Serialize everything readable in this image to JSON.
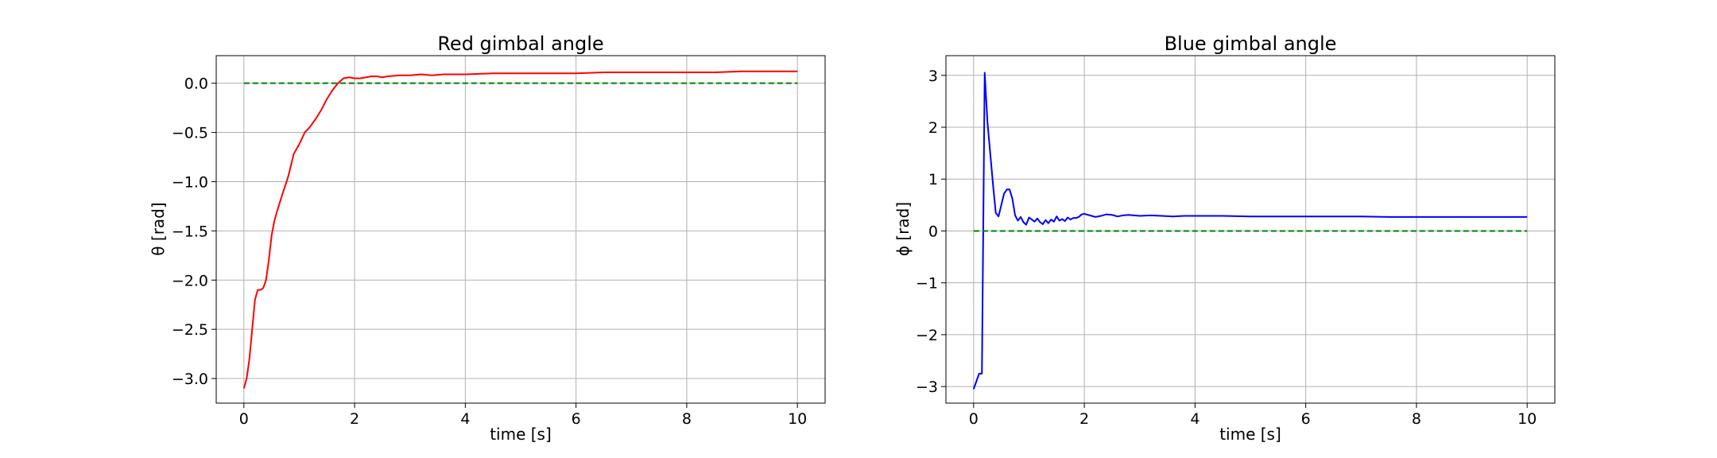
{
  "chart_data": [
    {
      "type": "line",
      "title": "Red gimbal angle",
      "xlabel": "time [s]",
      "ylabel": "θ [rad]",
      "xlim": [
        -0.5,
        10.5
      ],
      "ylim": [
        -3.25,
        0.28
      ],
      "xticks": [
        0,
        2,
        4,
        6,
        8,
        10
      ],
      "yticks": [
        -3.0,
        -2.5,
        -2.0,
        -1.5,
        -1.0,
        -0.5,
        0.0
      ],
      "ytick_labels": [
        "−3.0",
        "−2.5",
        "−2.0",
        "−1.5",
        "−1.0",
        "−0.5",
        "0.0"
      ],
      "grid": true,
      "series": [
        {
          "color": "#ff0000",
          "style": "solid",
          "x": [
            0,
            0.05,
            0.1,
            0.15,
            0.2,
            0.25,
            0.3,
            0.35,
            0.4,
            0.45,
            0.5,
            0.55,
            0.6,
            0.7,
            0.8,
            0.9,
            1.0,
            1.1,
            1.2,
            1.3,
            1.4,
            1.5,
            1.6,
            1.7,
            1.8,
            1.9,
            2.0,
            2.1,
            2.2,
            2.3,
            2.4,
            2.5,
            2.6,
            2.8,
            3.0,
            3.2,
            3.4,
            3.6,
            3.8,
            4.0,
            4.5,
            5.0,
            5.5,
            6.0,
            6.5,
            7.0,
            7.5,
            8.0,
            8.5,
            9.0,
            9.5,
            10.0
          ],
          "y": [
            -3.1,
            -3.0,
            -2.8,
            -2.5,
            -2.2,
            -2.1,
            -2.1,
            -2.08,
            -2.0,
            -1.8,
            -1.55,
            -1.4,
            -1.3,
            -1.12,
            -0.95,
            -0.72,
            -0.62,
            -0.5,
            -0.44,
            -0.36,
            -0.27,
            -0.16,
            -0.07,
            0.0,
            0.05,
            0.06,
            0.05,
            0.05,
            0.06,
            0.07,
            0.07,
            0.06,
            0.07,
            0.08,
            0.08,
            0.09,
            0.08,
            0.09,
            0.09,
            0.09,
            0.1,
            0.1,
            0.1,
            0.1,
            0.11,
            0.11,
            0.11,
            0.11,
            0.11,
            0.12,
            0.12,
            0.12
          ]
        },
        {
          "color": "#008000",
          "style": "dashed",
          "x": [
            0,
            10
          ],
          "y": [
            0,
            0
          ]
        }
      ]
    },
    {
      "type": "line",
      "title": "Blue gimbal angle",
      "xlabel": "time [s]",
      "ylabel": "ϕ [rad]",
      "xlim": [
        -0.5,
        10.5
      ],
      "ylim": [
        -3.32,
        3.38
      ],
      "xticks": [
        0,
        2,
        4,
        6,
        8,
        10
      ],
      "yticks": [
        -3,
        -2,
        -1,
        0,
        1,
        2,
        3
      ],
      "ytick_labels": [
        "−3",
        "−2",
        "−1",
        "0",
        "1",
        "2",
        "3"
      ],
      "grid": true,
      "series": [
        {
          "color": "#0000ff",
          "style": "solid",
          "x": [
            0,
            0.05,
            0.1,
            0.15,
            0.2,
            0.25,
            0.3,
            0.35,
            0.4,
            0.45,
            0.5,
            0.55,
            0.6,
            0.65,
            0.7,
            0.75,
            0.8,
            0.85,
            0.9,
            0.95,
            1.0,
            1.05,
            1.1,
            1.15,
            1.2,
            1.25,
            1.3,
            1.35,
            1.4,
            1.45,
            1.5,
            1.55,
            1.6,
            1.65,
            1.7,
            1.75,
            1.8,
            1.85,
            1.9,
            1.95,
            2.0,
            2.1,
            2.2,
            2.3,
            2.4,
            2.5,
            2.6,
            2.7,
            2.8,
            2.9,
            3.0,
            3.2,
            3.4,
            3.6,
            3.8,
            4.0,
            4.5,
            5.0,
            5.5,
            6.0,
            6.5,
            7.0,
            7.5,
            8.0,
            8.5,
            9.0,
            9.5,
            10.0
          ],
          "y": [
            -3.05,
            -2.9,
            -2.75,
            -2.75,
            3.05,
            2.1,
            1.5,
            0.9,
            0.35,
            0.28,
            0.5,
            0.72,
            0.8,
            0.8,
            0.62,
            0.3,
            0.2,
            0.27,
            0.17,
            0.12,
            0.26,
            0.22,
            0.18,
            0.24,
            0.17,
            0.13,
            0.21,
            0.15,
            0.22,
            0.18,
            0.28,
            0.2,
            0.23,
            0.19,
            0.26,
            0.22,
            0.25,
            0.25,
            0.27,
            0.32,
            0.33,
            0.3,
            0.27,
            0.29,
            0.32,
            0.31,
            0.28,
            0.3,
            0.31,
            0.3,
            0.29,
            0.3,
            0.29,
            0.28,
            0.29,
            0.29,
            0.29,
            0.28,
            0.28,
            0.28,
            0.28,
            0.28,
            0.27,
            0.27,
            0.27,
            0.27,
            0.27,
            0.27
          ]
        },
        {
          "color": "#008000",
          "style": "dashed",
          "x": [
            0,
            10
          ],
          "y": [
            0,
            0
          ]
        }
      ]
    }
  ]
}
